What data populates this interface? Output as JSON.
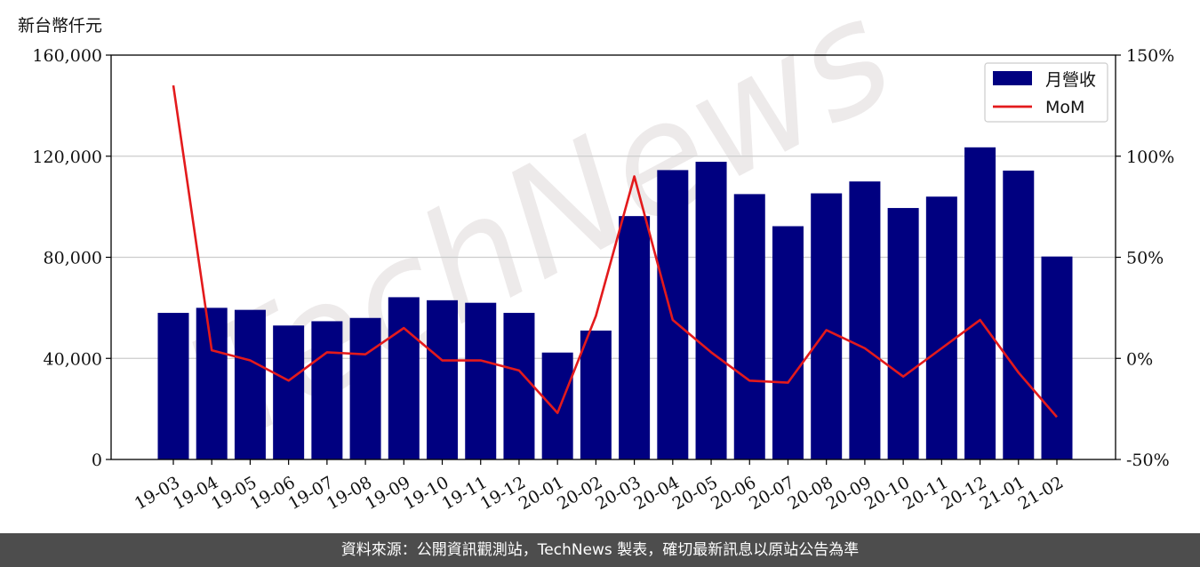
{
  "unit_label": "新台幣仟元",
  "footer_text": "資料來源：公開資訊觀測站，TechNews 製表，確切最新訊息以原站公告為準",
  "watermark_text": "TechNews",
  "colors": {
    "bar": "#000080",
    "line": "#e31a1c",
    "grid": "#cccccc",
    "footer_bg": "#4d4d4d",
    "watermark": "#e8e4e4"
  },
  "chart_data": {
    "type": "bar",
    "categories": [
      "19-03",
      "19-04",
      "19-05",
      "19-06",
      "19-07",
      "19-08",
      "19-09",
      "19-10",
      "19-11",
      "19-12",
      "20-01",
      "20-02",
      "20-03",
      "20-04",
      "20-05",
      "20-06",
      "20-07",
      "20-08",
      "20-09",
      "20-10",
      "20-11",
      "20-12",
      "21-01",
      "21-02"
    ],
    "series": [
      {
        "name": "月營收",
        "type": "bar",
        "axis": "left",
        "values": [
          58000,
          60000,
          59200,
          53000,
          54700,
          56000,
          64200,
          63000,
          62000,
          58000,
          42300,
          51000,
          96300,
          114500,
          117800,
          105000,
          92300,
          105300,
          110000,
          99500,
          104000,
          123500,
          114300,
          80300
        ]
      },
      {
        "name": "MoM",
        "type": "line",
        "axis": "right",
        "values": [
          135,
          4,
          -1,
          -11,
          3,
          2,
          15,
          -1,
          -1,
          -6,
          -27,
          21,
          90,
          19,
          3,
          -11,
          -12,
          14,
          5,
          -9,
          5,
          19,
          -7,
          -29
        ]
      }
    ],
    "y_left": {
      "range": [
        0,
        160000
      ],
      "ticks": [
        "0",
        "40,000",
        "80,000",
        "120,000",
        "160,000"
      ]
    },
    "y_right": {
      "range": [
        -50,
        150
      ],
      "ticks": [
        "-50%",
        "0%",
        "50%",
        "100%",
        "150%"
      ]
    },
    "grid": true,
    "legend_position": "top-right"
  }
}
